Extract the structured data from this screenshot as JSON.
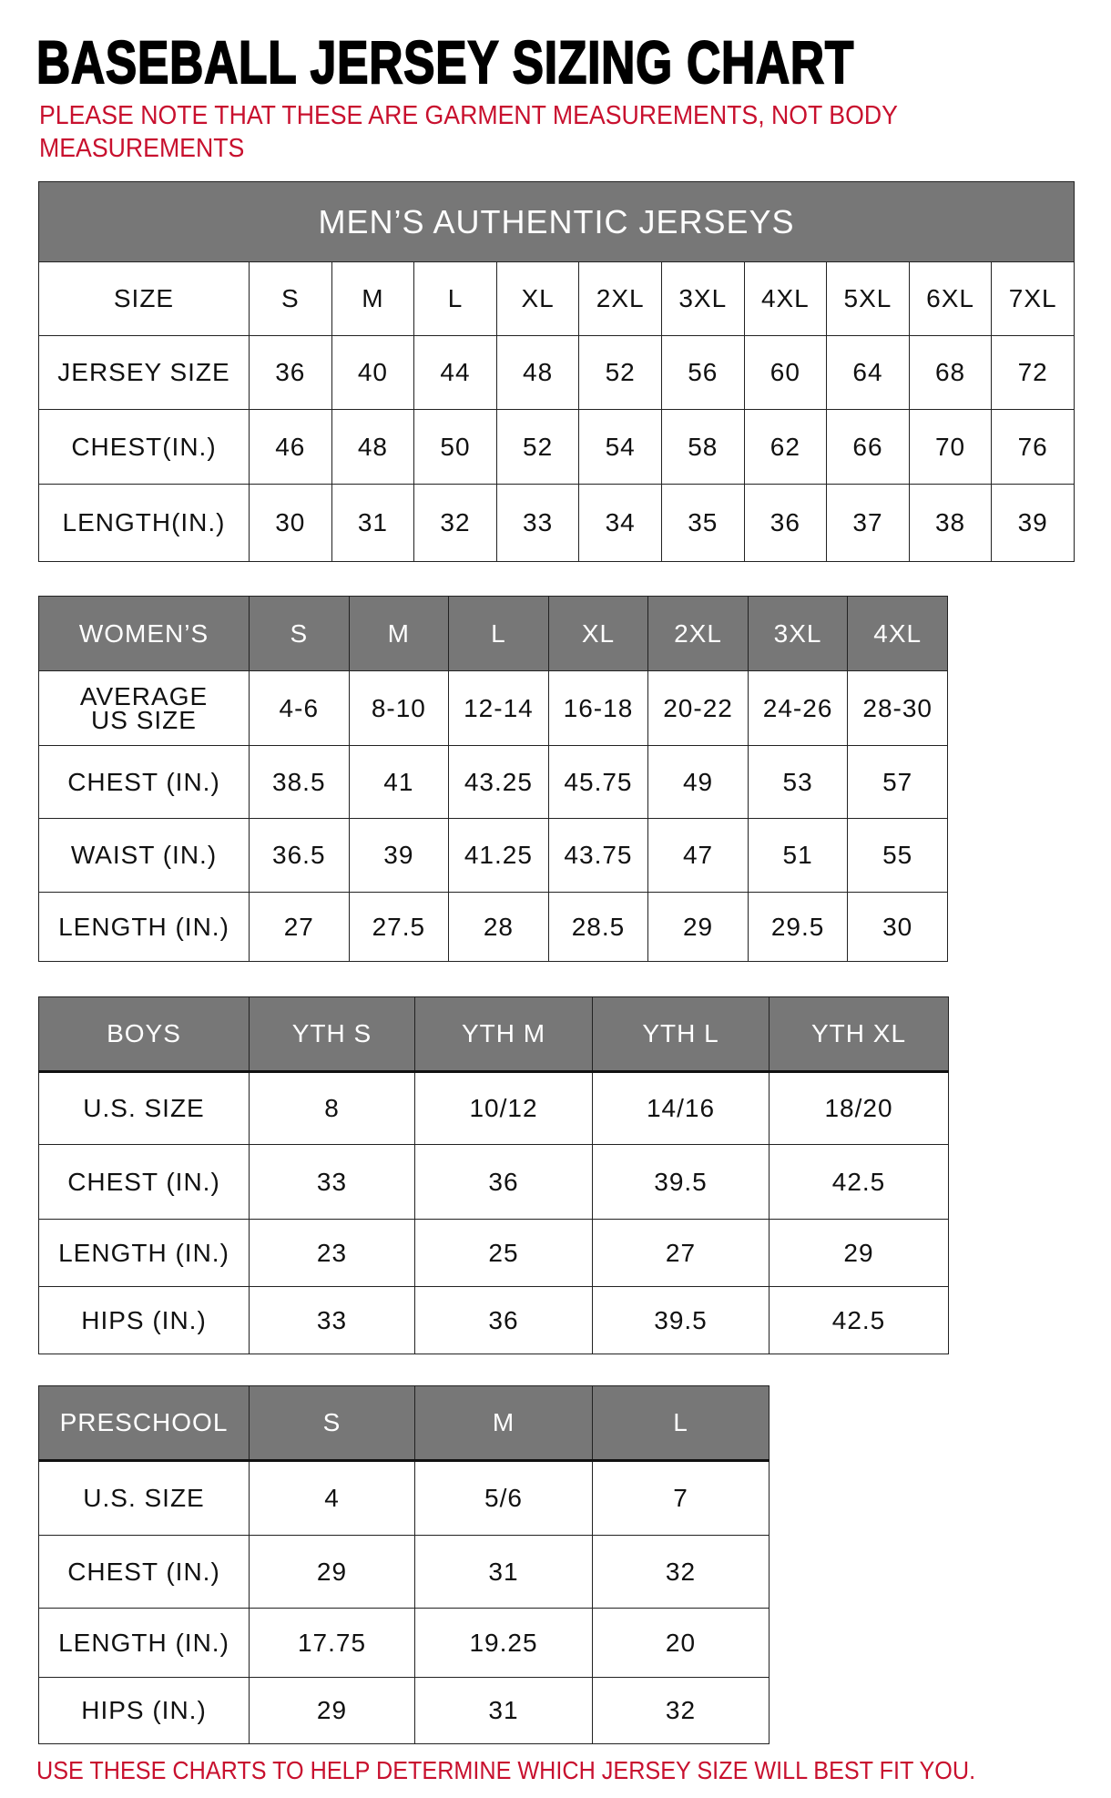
{
  "title": "BASEBALL JERSEY SIZING CHART",
  "note": "PLEASE NOTE THAT THESE ARE GARMENT MEASUREMENTS, NOT BODY MEASUREMENTS",
  "footer": "USE THESE CHARTS TO HELP DETERMINE WHICH JERSEY SIZE WILL BEST FIT YOU.",
  "colors": {
    "header_bg": "#777777",
    "note_red": "#c8102e"
  },
  "mens": {
    "title": "MEN’S AUTHENTIC JERSEYS",
    "header": [
      "SIZE",
      "S",
      "M",
      "L",
      "XL",
      "2XL",
      "3XL",
      "4XL",
      "5XL",
      "6XL",
      "7XL"
    ],
    "rows": [
      [
        "JERSEY SIZE",
        "36",
        "40",
        "44",
        "48",
        "52",
        "56",
        "60",
        "64",
        "68",
        "72"
      ],
      [
        "CHEST(IN.)",
        "46",
        "48",
        "50",
        "52",
        "54",
        "58",
        "62",
        "66",
        "70",
        "76"
      ],
      [
        "LENGTH(IN.)",
        "30",
        "31",
        "32",
        "33",
        "34",
        "35",
        "36",
        "37",
        "38",
        "39"
      ]
    ]
  },
  "womens": {
    "header": [
      "WOMEN’S",
      "S",
      "M",
      "L",
      "XL",
      "2XL",
      "3XL",
      "4XL"
    ],
    "rows": [
      [
        "AVERAGE US SIZE",
        "4-6",
        "8-10",
        "12-14",
        "16-18",
        "20-22",
        "24-26",
        "28-30"
      ],
      [
        "CHEST (IN.)",
        "38.5",
        "41",
        "43.25",
        "45.75",
        "49",
        "53",
        "57"
      ],
      [
        "WAIST (IN.)",
        "36.5",
        "39",
        "41.25",
        "43.75",
        "47",
        "51",
        "55"
      ],
      [
        "LENGTH (IN.)",
        "27",
        "27.5",
        "28",
        "28.5",
        "29",
        "29.5",
        "30"
      ]
    ]
  },
  "boys": {
    "header": [
      "BOYS",
      "YTH S",
      "YTH M",
      "YTH L",
      "YTH XL"
    ],
    "rows": [
      [
        "U.S. SIZE",
        "8",
        "10/12",
        "14/16",
        "18/20"
      ],
      [
        "CHEST (IN.)",
        "33",
        "36",
        "39.5",
        "42.5"
      ],
      [
        "LENGTH (IN.)",
        "23",
        "25",
        "27",
        "29"
      ],
      [
        "HIPS (IN.)",
        "33",
        "36",
        "39.5",
        "42.5"
      ]
    ]
  },
  "preschool": {
    "header": [
      "PRESCHOOL",
      "S",
      "M",
      "L"
    ],
    "rows": [
      [
        "U.S. SIZE",
        "4",
        "5/6",
        "7"
      ],
      [
        "CHEST (IN.)",
        "29",
        "31",
        "32"
      ],
      [
        "LENGTH (IN.)",
        "17.75",
        "19.25",
        "20"
      ],
      [
        "HIPS (IN.)",
        "29",
        "31",
        "32"
      ]
    ]
  }
}
